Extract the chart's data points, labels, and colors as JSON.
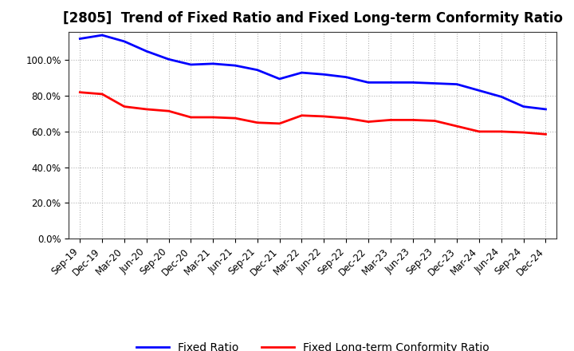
{
  "title": "[2805]  Trend of Fixed Ratio and Fixed Long-term Conformity Ratio",
  "x_labels": [
    "Sep-19",
    "Dec-19",
    "Mar-20",
    "Jun-20",
    "Sep-20",
    "Dec-20",
    "Mar-21",
    "Jun-21",
    "Sep-21",
    "Dec-21",
    "Mar-22",
    "Jun-22",
    "Sep-22",
    "Dec-22",
    "Mar-23",
    "Jun-23",
    "Sep-23",
    "Dec-23",
    "Mar-24",
    "Jun-24",
    "Sep-24",
    "Dec-24"
  ],
  "fixed_ratio": [
    112.0,
    114.0,
    110.5,
    105.0,
    100.5,
    97.5,
    98.0,
    97.0,
    94.5,
    89.5,
    93.0,
    92.0,
    90.5,
    87.5,
    87.5,
    87.5,
    87.0,
    86.5,
    83.0,
    79.5,
    74.0,
    72.5
  ],
  "fixed_lt_ratio": [
    82.0,
    81.0,
    74.0,
    72.5,
    71.5,
    68.0,
    68.0,
    67.5,
    65.0,
    64.5,
    69.0,
    68.5,
    67.5,
    65.5,
    66.5,
    66.5,
    66.0,
    63.0,
    60.0,
    60.0,
    59.5,
    58.5
  ],
  "fixed_ratio_color": "#0000FF",
  "fixed_lt_ratio_color": "#FF0000",
  "ylim": [
    0,
    116
  ],
  "yticks": [
    0,
    20,
    40,
    60,
    80,
    100
  ],
  "ytick_labels": [
    "0.0%",
    "20.0%",
    "40.0%",
    "60.0%",
    "80.0%",
    "100.0%"
  ],
  "background_color": "#FFFFFF",
  "grid_color": "#AAAAAA",
  "legend_fixed_ratio": "Fixed Ratio",
  "legend_fixed_lt_ratio": "Fixed Long-term Conformity Ratio",
  "title_fontsize": 12,
  "axis_fontsize": 8.5,
  "legend_fontsize": 10
}
